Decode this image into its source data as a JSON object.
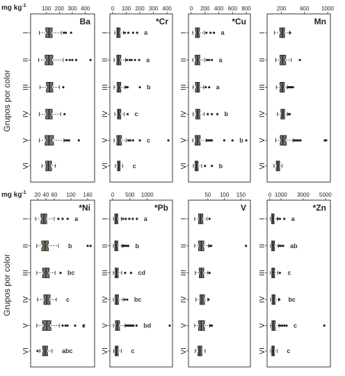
{
  "figure": {
    "unit_label": "mg kg",
    "unit_superscript": "-1",
    "y_axis_label": "Grupos por color"
  },
  "colors": {
    "box_fill": "#7a7467",
    "stroke": "#222222"
  },
  "chart_data": [
    {
      "type": "boxplot",
      "element": "Ba",
      "title": "Ba",
      "xlim": [
        0,
        450
      ],
      "ticks": [
        100,
        200,
        300,
        400
      ],
      "tick_labels": [
        "100",
        "200",
        "300",
        "400"
      ],
      "group_labels": [
        "I",
        "II",
        "III",
        "IV",
        "V",
        "VI"
      ],
      "boxes": [
        {
          "wmin": 45,
          "q1": 95,
          "median": 120,
          "q3": 145,
          "wmax": 215,
          "outliers": [
            235,
            250,
            290
          ]
        },
        {
          "wmin": 40,
          "q1": 90,
          "median": 120,
          "q3": 150,
          "wmax": 230,
          "outliers": [
            255,
            280,
            300,
            330,
            440
          ]
        },
        {
          "wmin": 50,
          "q1": 100,
          "median": 125,
          "q3": 150,
          "wmax": 200,
          "outliers": [
            230
          ]
        },
        {
          "wmin": 45,
          "q1": 95,
          "median": 120,
          "q3": 145,
          "wmax": 210,
          "outliers": [
            240
          ]
        },
        {
          "wmin": 45,
          "q1": 90,
          "median": 120,
          "q3": 155,
          "wmax": 235,
          "outliers": [
            245,
            260,
            275,
            350
          ]
        },
        {
          "wmin": 65,
          "q1": 95,
          "median": 115,
          "q3": 140,
          "wmax": 170,
          "outliers": []
        }
      ],
      "letters": []
    },
    {
      "type": "boxplot",
      "element": "Cr",
      "title": "*Cr",
      "xlim": [
        0,
        420
      ],
      "ticks": [
        0,
        100,
        200,
        300,
        400
      ],
      "tick_labels": [
        "0",
        "100",
        "200",
        "300",
        "400"
      ],
      "group_labels": [
        "I",
        "II",
        "III",
        "IV",
        "V",
        "VI"
      ],
      "boxes": [
        {
          "wmin": 15,
          "q1": 30,
          "median": 40,
          "q3": 55,
          "wmax": 80,
          "outliers": [
            90,
            115,
            150,
            180
          ]
        },
        {
          "wmin": 10,
          "q1": 30,
          "median": 42,
          "q3": 60,
          "wmax": 95,
          "outliers": [
            105,
            125,
            140,
            165,
            195
          ]
        },
        {
          "wmin": 10,
          "q1": 32,
          "median": 45,
          "q3": 60,
          "wmax": 90,
          "outliers": [
            100,
            110,
            200
          ]
        },
        {
          "wmin": 15,
          "q1": 35,
          "median": 45,
          "q3": 60,
          "wmax": 85,
          "outliers": [
            110
          ]
        },
        {
          "wmin": 10,
          "q1": 30,
          "median": 45,
          "q3": 65,
          "wmax": 100,
          "outliers": [
            115,
            130,
            150,
            200,
            410
          ]
        },
        {
          "wmin": 20,
          "q1": 35,
          "median": 45,
          "q3": 55,
          "wmax": 75,
          "outliers": []
        }
      ],
      "letters": [
        "a",
        "a",
        "b",
        "c",
        "c",
        "c"
      ]
    },
    {
      "type": "boxplot",
      "element": "Cu",
      "title": "*Cu",
      "xlim": [
        0,
        820
      ],
      "ticks": [
        0,
        200,
        400,
        600,
        800
      ],
      "tick_labels": [
        "0",
        "200",
        "400",
        "600",
        "800"
      ],
      "group_labels": [
        "I",
        "II",
        "III",
        "IV",
        "V",
        "VI"
      ],
      "boxes": [
        {
          "wmin": 20,
          "q1": 60,
          "median": 90,
          "q3": 120,
          "wmax": 190,
          "outliers": [
            220,
            280,
            330
          ]
        },
        {
          "wmin": 20,
          "q1": 55,
          "median": 90,
          "q3": 125,
          "wmax": 200,
          "outliers": [
            230,
            260,
            300
          ]
        },
        {
          "wmin": 25,
          "q1": 60,
          "median": 95,
          "q3": 120,
          "wmax": 180,
          "outliers": [
            210,
            260
          ]
        },
        {
          "wmin": 25,
          "q1": 65,
          "median": 95,
          "q3": 125,
          "wmax": 190,
          "outliers": [
            240,
            300,
            380
          ]
        },
        {
          "wmin": 20,
          "q1": 55,
          "median": 90,
          "q3": 130,
          "wmax": 215,
          "outliers": [
            230,
            250,
            270,
            290,
            300,
            480,
            600,
            800
          ]
        },
        {
          "wmin": 30,
          "q1": 55,
          "median": 75,
          "q3": 100,
          "wmax": 150,
          "outliers": [
            200,
            300
          ]
        }
      ],
      "letters": [
        "a",
        "a",
        "a",
        "b",
        "b",
        "b"
      ]
    },
    {
      "type": "boxplot",
      "element": "Mn",
      "title": "Mn",
      "xlim": [
        0,
        1000
      ],
      "ticks": [
        200,
        600,
        1000
      ],
      "tick_labels": [
        "200",
        "600",
        "1000"
      ],
      "group_labels": [
        "I",
        "II",
        "III",
        "IV",
        "V",
        "VI"
      ],
      "boxes": [
        {
          "wmin": 80,
          "q1": 170,
          "median": 215,
          "q3": 255,
          "wmax": 340,
          "outliers": [
            350
          ]
        },
        {
          "wmin": 100,
          "q1": 175,
          "median": 220,
          "q3": 275,
          "wmax": 370,
          "outliers": [
            520
          ]
        },
        {
          "wmin": 110,
          "q1": 175,
          "median": 215,
          "q3": 250,
          "wmax": 300,
          "outliers": [
            310,
            330,
            350,
            370,
            400
          ]
        },
        {
          "wmin": 130,
          "q1": 190,
          "median": 225,
          "q3": 255,
          "wmax": 300,
          "outliers": [
            320,
            345
          ]
        },
        {
          "wmin": 100,
          "q1": 180,
          "median": 225,
          "q3": 285,
          "wmax": 400,
          "outliers": [
            420,
            440,
            470,
            500,
            530,
            950,
            975
          ]
        },
        {
          "wmin": 70,
          "q1": 110,
          "median": 140,
          "q3": 170,
          "wmax": 210,
          "outliers": []
        }
      ],
      "letters": []
    },
    {
      "type": "boxplot",
      "element": "Ni",
      "title": "*Ni",
      "xlim": [
        10,
        150
      ],
      "ticks": [
        20,
        40,
        60,
        100,
        140
      ],
      "tick_labels": [
        "20",
        "40",
        "60",
        "100",
        "140"
      ],
      "group_labels": [
        "I",
        "II",
        "III",
        "IV",
        "V",
        "VI"
      ],
      "boxes": [
        {
          "wmin": 15,
          "q1": 28,
          "median": 35,
          "q3": 42,
          "wmax": 60,
          "outliers": [
            70,
            80,
            92
          ]
        },
        {
          "wmin": 18,
          "q1": 30,
          "median": 38,
          "q3": 46,
          "wmax": 70,
          "outliers": [
            140,
            147
          ]
        },
        {
          "wmin": 18,
          "q1": 32,
          "median": 40,
          "q3": 48,
          "wmax": 62,
          "outliers": [
            75
          ]
        },
        {
          "wmin": 20,
          "q1": 35,
          "median": 42,
          "q3": 50,
          "wmax": 65,
          "outliers": []
        },
        {
          "wmin": 18,
          "q1": 32,
          "median": 42,
          "q3": 52,
          "wmax": 72,
          "outliers": [
            80,
            87,
            92,
            110,
            130
          ]
        },
        {
          "wmin": 25,
          "q1": 32,
          "median": 38,
          "q3": 44,
          "wmax": 55,
          "outliers": [
            20
          ]
        }
      ],
      "letters": [
        "a",
        "b",
        "bc",
        "c",
        "c",
        "abc"
      ]
    },
    {
      "type": "boxplot",
      "element": "Pb",
      "title": "*Pb",
      "xlim": [
        0,
        1650
      ],
      "ticks": [
        0,
        500,
        1000
      ],
      "tick_labels": [
        "0",
        "500",
        "1000"
      ],
      "group_labels": [
        "I",
        "II",
        "III",
        "IV",
        "V",
        "VI"
      ],
      "boxes": [
        {
          "wmin": 20,
          "q1": 60,
          "median": 100,
          "q3": 150,
          "wmax": 250,
          "outliers": [
            300,
            380,
            480,
            580,
            700
          ]
        },
        {
          "wmin": 20,
          "q1": 60,
          "median": 100,
          "q3": 150,
          "wmax": 270,
          "outliers": [
            290,
            310,
            330,
            350,
            400,
            450
          ]
        },
        {
          "wmin": 20,
          "q1": 70,
          "median": 110,
          "q3": 160,
          "wmax": 260,
          "outliers": [
            360,
            530
          ]
        },
        {
          "wmin": 20,
          "q1": 70,
          "median": 115,
          "q3": 170,
          "wmax": 300,
          "outliers": [
            350,
            420
          ]
        },
        {
          "wmin": 20,
          "q1": 80,
          "median": 130,
          "q3": 200,
          "wmax": 350,
          "outliers": [
            390,
            410,
            430,
            460,
            490,
            520,
            560,
            600,
            690,
            1650
          ]
        },
        {
          "wmin": 30,
          "q1": 70,
          "median": 110,
          "q3": 160,
          "wmax": 250,
          "outliers": []
        }
      ],
      "letters": [
        "a",
        "b",
        "cd",
        "bc",
        "bd",
        "c"
      ]
    },
    {
      "type": "boxplot",
      "element": "V",
      "title": "V",
      "xlim": [
        0,
        170
      ],
      "ticks": [
        50,
        100,
        150
      ],
      "tick_labels": [
        "50",
        "100",
        "150"
      ],
      "group_labels": [
        "I",
        "II",
        "III",
        "IV",
        "V",
        "VI"
      ],
      "boxes": [
        {
          "wmin": 10,
          "q1": 22,
          "median": 28,
          "q3": 35,
          "wmax": 48,
          "outliers": [
            55
          ]
        },
        {
          "wmin": 10,
          "q1": 22,
          "median": 30,
          "q3": 38,
          "wmax": 52,
          "outliers": [
            55,
            60,
            165
          ]
        },
        {
          "wmin": 12,
          "q1": 24,
          "median": 30,
          "q3": 38,
          "wmax": 50,
          "outliers": [
            55
          ]
        },
        {
          "wmin": 14,
          "q1": 26,
          "median": 32,
          "q3": 40,
          "wmax": 50,
          "outliers": [
            52
          ]
        },
        {
          "wmin": 10,
          "q1": 22,
          "median": 30,
          "q3": 40,
          "wmax": 55,
          "outliers": [
            58,
            62
          ]
        },
        {
          "wmin": 12,
          "q1": 20,
          "median": 26,
          "q3": 32,
          "wmax": 42,
          "outliers": []
        }
      ],
      "letters": []
    },
    {
      "type": "boxplot",
      "element": "Zn",
      "title": "*Zn",
      "xlim": [
        0,
        5200
      ],
      "ticks": [
        0,
        1000,
        3000,
        5000
      ],
      "tick_labels": [
        "0",
        "1000",
        "3000",
        "5000"
      ],
      "group_labels": [
        "I",
        "II",
        "III",
        "IV",
        "V",
        "VI"
      ],
      "boxes": [
        {
          "wmin": 50,
          "q1": 150,
          "median": 260,
          "q3": 380,
          "wmax": 650,
          "outliers": [
            700,
            900,
            1300
          ]
        },
        {
          "wmin": 60,
          "q1": 160,
          "median": 280,
          "q3": 420,
          "wmax": 750,
          "outliers": [
            850,
            1000,
            1200
          ]
        },
        {
          "wmin": 60,
          "q1": 170,
          "median": 290,
          "q3": 430,
          "wmax": 720,
          "outliers": [
            900
          ]
        },
        {
          "wmin": 60,
          "q1": 190,
          "median": 320,
          "q3": 470,
          "wmax": 780,
          "outliers": [
            850
          ]
        },
        {
          "wmin": 60,
          "q1": 180,
          "median": 310,
          "q3": 480,
          "wmax": 800,
          "outliers": [
            900,
            1100,
            1300,
            1500,
            4900
          ]
        },
        {
          "wmin": 70,
          "q1": 170,
          "median": 280,
          "q3": 400,
          "wmax": 650,
          "outliers": []
        }
      ],
      "letters": [
        "a",
        "ab",
        "c",
        "bc",
        "c",
        "c"
      ]
    }
  ]
}
